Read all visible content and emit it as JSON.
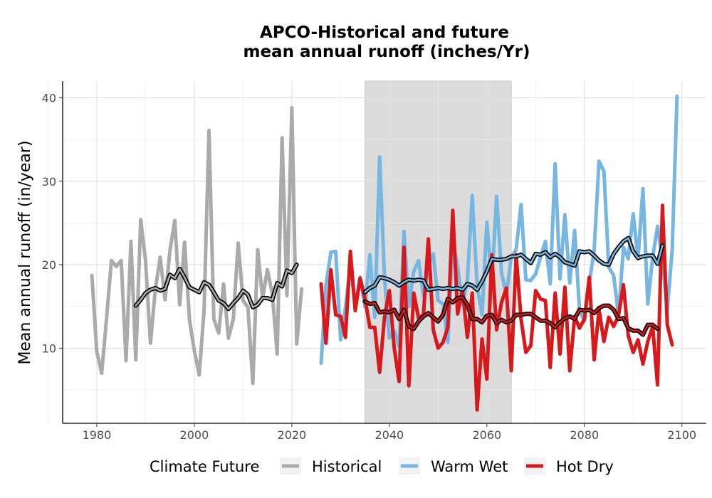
{
  "chart_data": {
    "type": "line",
    "title_line1": "APCO-Historical and future",
    "title_line2": "mean annual runoff (inches/Yr)",
    "xlabel": "",
    "ylabel": "Mean annual runoff (in/year)",
    "xlim": [
      1973,
      2105
    ],
    "ylim": [
      1,
      42
    ],
    "x_ticks": [
      1980,
      2000,
      2020,
      2040,
      2060,
      2080,
      2100
    ],
    "x_tick_labels": [
      "1980",
      "2000",
      "2020",
      "2040",
      "2060",
      "2080",
      "2100"
    ],
    "y_ticks": [
      10,
      20,
      30,
      40
    ],
    "y_tick_labels": [
      "10",
      "20",
      "30",
      "40"
    ],
    "grid": true,
    "shaded_period": [
      2035,
      2065
    ],
    "legend_title": "Climate Future",
    "legend_position": "bottom",
    "series": [
      {
        "name": "Historical",
        "color": "#aaaaaa",
        "x_start": 1979,
        "values": [
          18.7,
          9.6,
          7.0,
          13.5,
          20.5,
          19.8,
          20.5,
          8.5,
          22.8,
          8.6,
          25.4,
          20.5,
          10.6,
          17.0,
          20.9,
          15.8,
          21.7,
          25.3,
          15.2,
          22.7,
          13.4,
          9.7,
          6.8,
          14.5,
          36.1,
          13.5,
          11.8,
          17.7,
          11.2,
          13.5,
          22.6,
          15.7,
          14.9,
          5.8,
          21.8,
          16.0,
          19.4,
          16.5,
          9.3,
          35.2,
          16.3,
          38.8,
          10.5,
          17.1
        ]
      },
      {
        "name": "Warm Wet",
        "color": "#77b6e0",
        "x_start": 2026,
        "values": [
          8.2,
          17.5,
          21.5,
          21.6,
          11.0,
          14.9,
          20.0,
          15.1,
          18.5,
          15.0,
          21.2,
          13.7,
          32.9,
          18.5,
          11.2,
          12.1,
          10.2,
          24.0,
          15.0,
          19.2,
          20.5,
          16.2,
          20.1,
          21.3,
          15.7,
          15.3,
          10.7,
          23.0,
          19.8,
          15.3,
          18.1,
          28.3,
          17.5,
          14.0,
          25.1,
          17.7,
          28.2,
          19.0,
          16.4,
          20.9,
          21.8,
          27.2,
          18.2,
          18.1,
          18.9,
          20.9,
          22.8,
          17.7,
          32.1,
          18.3,
          26.0,
          17.8,
          24.1,
          14.6,
          13.2,
          17.8,
          21.7,
          32.4,
          31.2,
          19.7,
          18.7,
          13.9,
          22.1,
          20.7,
          26.1,
          20.7,
          29.1,
          15.3,
          20.9,
          24.6,
          20.6,
          14.6,
          21.8,
          40.2
        ]
      },
      {
        "name": "Hot Dry",
        "color": "#d7191c",
        "x_start": 2026,
        "values": [
          17.7,
          10.6,
          19.4,
          14.0,
          13.8,
          11.3,
          21.6,
          14.5,
          18.4,
          15.9,
          12.5,
          12.5,
          7.1,
          13.7,
          16.9,
          10.0,
          6.0,
          22.1,
          5.5,
          16.6,
          13.6,
          14.0,
          23.1,
          12.2,
          10.0,
          10.7,
          12.5,
          26.5,
          14.1,
          17.0,
          11.3,
          16.6,
          2.6,
          11.1,
          6.3,
          21.2,
          12.2,
          15.5,
          17.2,
          7.3,
          21.2,
          13.5,
          9.5,
          10.3,
          16.9,
          15.9,
          15.7,
          7.7,
          16.6,
          9.3,
          17.3,
          7.3,
          13.8,
          12.4,
          13.5,
          18.5,
          8.6,
          14.6,
          10.8,
          13.7,
          12.6,
          13.9,
          17.6,
          11.5,
          9.5,
          11.0,
          8.1,
          10.8,
          12.6,
          5.6,
          27.1,
          12.8,
          10.4
        ]
      },
      {
        "name": "",
        "color": "#000000",
        "kind": "rolling-mean",
        "parent": "Historical",
        "x_start": 1988,
        "values": [
          15.1,
          15.8,
          16.6,
          17.0,
          17.2,
          16.9,
          17.1,
          18.8,
          18.4,
          19.5,
          18.5,
          17.3,
          17.0,
          16.7,
          17.9,
          17.6,
          16.7,
          15.7,
          15.4,
          14.7,
          15.4,
          16.0,
          16.9,
          16.4,
          14.9,
          15.2,
          16.0,
          16.0,
          15.8,
          17.8,
          17.4,
          19.3,
          19.0,
          20.0
        ]
      },
      {
        "name": "",
        "color": "#000000",
        "kind": "rolling-mean",
        "parent": "Warm Wet",
        "x_start": 2035,
        "values": [
          16.7,
          17.2,
          17.5,
          18.5,
          18.4,
          18.2,
          17.9,
          17.5,
          17.9,
          18.2,
          18.1,
          18.2,
          18.1,
          17.0,
          17.1,
          17.2,
          17.1,
          17.2,
          17.1,
          17.2,
          17.0,
          17.7,
          17.5,
          17.0,
          18.0,
          19.2,
          20.7,
          20.6,
          20.6,
          20.7,
          21.0,
          21.0,
          21.2,
          20.7,
          20.2,
          21.3,
          21.2,
          21.5,
          20.9,
          21.3,
          20.9,
          20.3,
          20.1,
          19.9,
          21.6,
          21.5,
          21.6,
          21.1,
          20.5,
          20.1,
          20.0,
          21.3,
          22.1,
          22.8,
          23.2,
          21.6,
          20.8,
          21.0,
          21.1,
          21.1,
          20.1,
          22.3
        ]
      },
      {
        "name": "",
        "color": "#000000",
        "kind": "rolling-mean",
        "parent": "Hot Dry",
        "x_start": 2035,
        "values": [
          15.6,
          15.3,
          15.4,
          14.3,
          14.4,
          14.3,
          14.6,
          13.5,
          14.6,
          12.6,
          12.3,
          13.2,
          13.8,
          14.2,
          13.7,
          13.2,
          14.0,
          15.9,
          15.5,
          16.0,
          16.1,
          15.2,
          13.5,
          13.5,
          13.1,
          13.9,
          14.0,
          13.0,
          13.4,
          13.1,
          13.3,
          14.0,
          14.0,
          14.1,
          14.1,
          13.7,
          13.3,
          13.3,
          13.0,
          12.5,
          13.1,
          13.6,
          13.8,
          13.5,
          14.6,
          14.5,
          14.6,
          14.2,
          14.8,
          15.1,
          15.1,
          14.6,
          13.5,
          13.6,
          12.4,
          12.1,
          12.1,
          11.6,
          12.8,
          12.8,
          12.3
        ]
      }
    ]
  }
}
